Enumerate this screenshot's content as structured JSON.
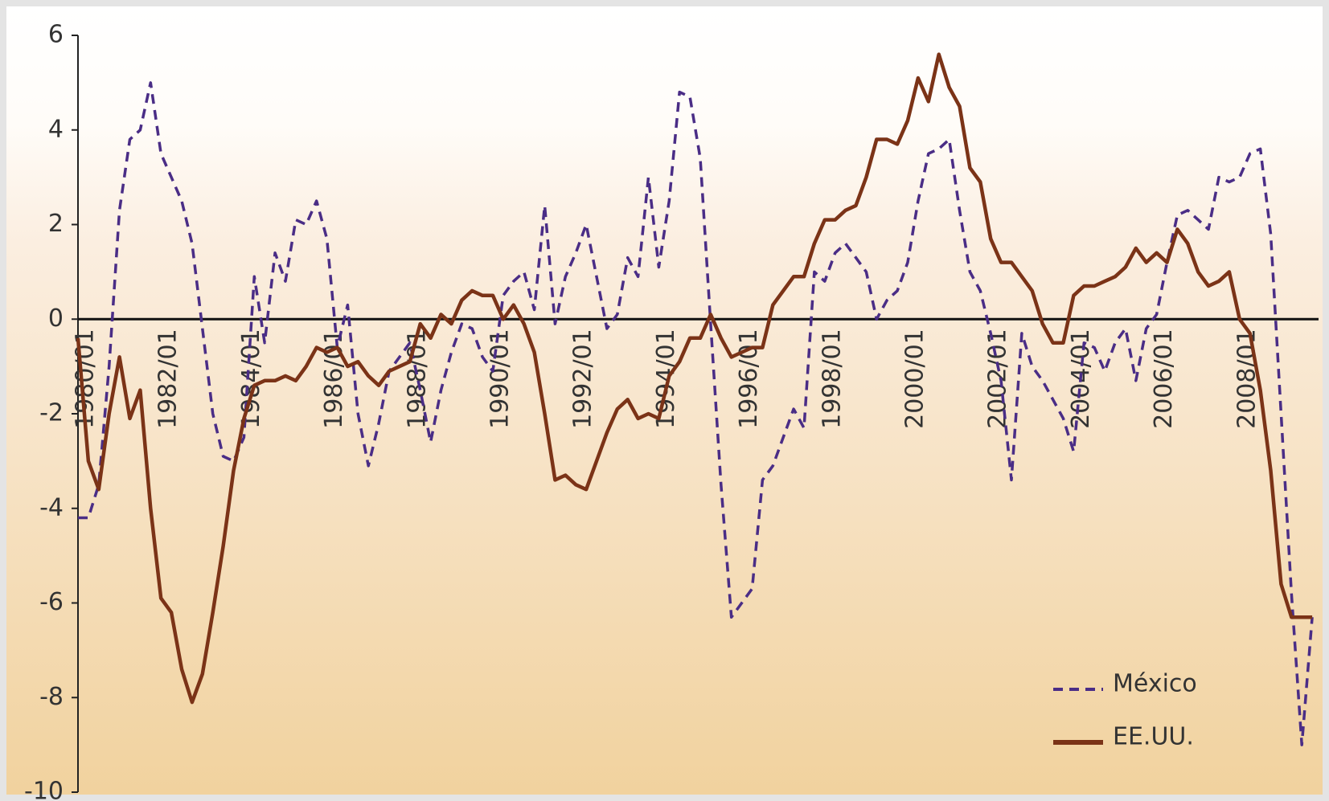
{
  "chart_data": {
    "type": "line",
    "categories": [
      "1980/01",
      null,
      null,
      null,
      null,
      null,
      null,
      null,
      "1982/01",
      null,
      null,
      null,
      null,
      null,
      null,
      null,
      "1984/01",
      null,
      null,
      null,
      null,
      null,
      null,
      null,
      "1986/01",
      null,
      null,
      null,
      null,
      null,
      null,
      null,
      "1988/01",
      null,
      null,
      null,
      null,
      null,
      null,
      null,
      "1990/01",
      null,
      null,
      null,
      null,
      null,
      null,
      null,
      "1992/01",
      null,
      null,
      null,
      null,
      null,
      null,
      null,
      "1994/01",
      null,
      null,
      null,
      null,
      null,
      null,
      null,
      "1996/01",
      null,
      null,
      null,
      null,
      null,
      null,
      null,
      "1998/01",
      null,
      null,
      null,
      null,
      null,
      null,
      null,
      "2000/01",
      null,
      null,
      null,
      null,
      null,
      null,
      null,
      "2002/01",
      null,
      null,
      null,
      null,
      null,
      null,
      null,
      "2004/01",
      null,
      null,
      null,
      null,
      null,
      null,
      null,
      "2006/01",
      null,
      null,
      null,
      null,
      null,
      null,
      null,
      "2008/01",
      null,
      null,
      null,
      null,
      null,
      null,
      null
    ],
    "series": [
      {
        "name": "México",
        "color": "#4a2d86",
        "dash": true,
        "values": [
          -4.2,
          -4.2,
          -3.5,
          -1.0,
          2.3,
          3.8,
          4.0,
          5.0,
          3.5,
          3.0,
          2.5,
          1.6,
          -0.2,
          -2.0,
          -2.9,
          -3.0,
          -2.5,
          0.9,
          -0.5,
          1.4,
          0.8,
          2.1,
          2.0,
          2.5,
          1.7,
          -0.6,
          0.3,
          -2.0,
          -3.1,
          -2.2,
          -1.1,
          -0.8,
          -0.5,
          -1.5,
          -2.6,
          -1.5,
          -0.7,
          -0.1,
          -0.2,
          -0.8,
          -1.1,
          0.5,
          0.8,
          1.0,
          0.2,
          2.4,
          -0.1,
          0.9,
          1.4,
          2.0,
          0.9,
          -0.2,
          0.1,
          1.3,
          0.9,
          3.0,
          1.1,
          2.5,
          4.8,
          4.7,
          3.4,
          -0.1,
          -3.5,
          -6.3,
          -6.0,
          -5.7,
          -3.4,
          -3.1,
          -2.5,
          -1.9,
          -2.3,
          1.0,
          0.8,
          1.4,
          1.6,
          1.3,
          1.0,
          0.0,
          0.4,
          0.6,
          1.2,
          2.5,
          3.5,
          3.6,
          3.8,
          2.3,
          1.0,
          0.6,
          -0.3,
          -1.3,
          -3.4,
          -0.3,
          -1.0,
          -1.3,
          -1.7,
          -2.1,
          -2.8,
          -0.5,
          -0.6,
          -1.1,
          -0.5,
          -0.2,
          -1.3,
          -0.2,
          0.1,
          1.2,
          2.2,
          2.3,
          2.1,
          1.9,
          3.0,
          2.9,
          3.0,
          3.5,
          3.6,
          1.8,
          -2.0,
          -5.8,
          -9.0,
          -6.3
        ]
      },
      {
        "name": "EE.UU.",
        "color": "#7b3317",
        "dash": false,
        "values": [
          -0.4,
          -3.0,
          -3.6,
          -2.0,
          -0.8,
          -2.1,
          -1.5,
          -4.0,
          -5.9,
          -6.2,
          -7.4,
          -8.1,
          -7.5,
          -6.2,
          -4.8,
          -3.2,
          -2.1,
          -1.4,
          -1.3,
          -1.3,
          -1.2,
          -1.3,
          -1.0,
          -0.6,
          -0.7,
          -0.6,
          -1.0,
          -0.9,
          -1.2,
          -1.4,
          -1.1,
          -1.0,
          -0.9,
          -0.1,
          -0.4,
          0.1,
          -0.1,
          0.4,
          0.6,
          0.5,
          0.5,
          0.0,
          0.3,
          -0.1,
          -0.7,
          -2.0,
          -3.4,
          -3.3,
          -3.5,
          -3.6,
          -3.0,
          -2.4,
          -1.9,
          -1.7,
          -2.1,
          -2.0,
          -2.1,
          -1.2,
          -0.9,
          -0.4,
          -0.4,
          0.1,
          -0.4,
          -0.8,
          -0.7,
          -0.6,
          -0.6,
          0.3,
          0.6,
          0.9,
          0.9,
          1.6,
          2.1,
          2.1,
          2.3,
          2.4,
          3.0,
          3.8,
          3.8,
          3.7,
          4.2,
          5.1,
          4.6,
          5.6,
          4.9,
          4.5,
          3.2,
          2.9,
          1.7,
          1.2,
          1.2,
          0.9,
          0.6,
          -0.1,
          -0.5,
          -0.5,
          0.5,
          0.7,
          0.7,
          0.8,
          0.9,
          1.1,
          1.5,
          1.2,
          1.4,
          1.2,
          1.9,
          1.6,
          1.0,
          0.7,
          0.8,
          1.0,
          0.0,
          -0.3,
          -1.5,
          -3.2,
          -5.6,
          -6.3,
          -6.3,
          -6.3
        ]
      }
    ],
    "ylim": [
      -10,
      6
    ],
    "yticks": [
      6,
      4,
      2,
      0,
      -2,
      -4,
      -6,
      -8,
      -10
    ],
    "zero_line": true,
    "legend": "bottom-right"
  }
}
